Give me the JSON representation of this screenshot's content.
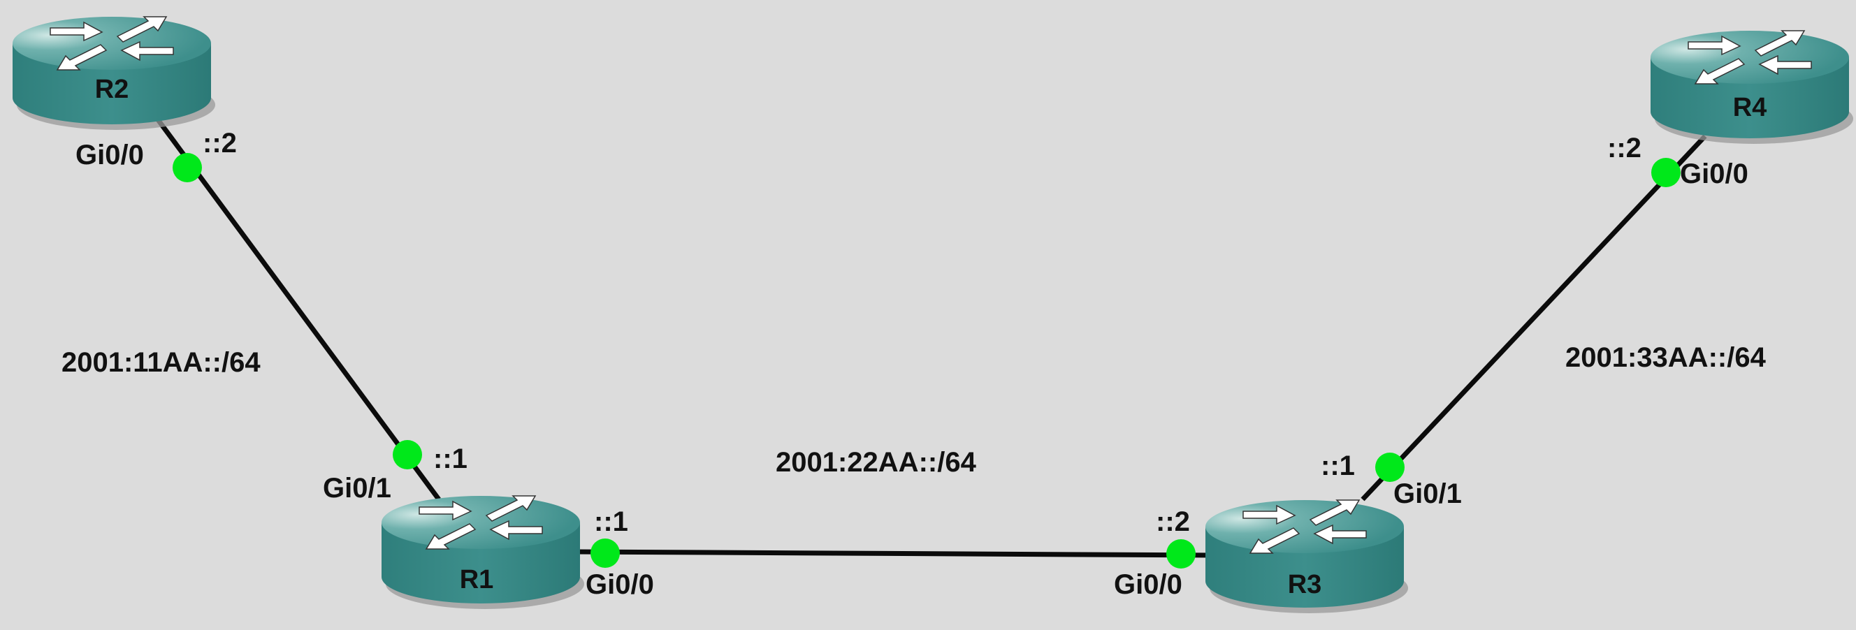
{
  "colors": {
    "background": "#dcdcdc",
    "router_top": "#4a9a98",
    "router_top_light": "#a9d3cf",
    "router_side": "#3a8a87",
    "router_shadow": "#9a9a9a",
    "link": "#0b0b0b",
    "port_dot": "#00e81a",
    "text": "#111111"
  },
  "routers": {
    "r1": {
      "name": "R1",
      "icon": "router-icon"
    },
    "r2": {
      "name": "R2",
      "icon": "router-icon"
    },
    "r3": {
      "name": "R3",
      "icon": "router-icon"
    },
    "r4": {
      "name": "R4",
      "icon": "router-icon"
    }
  },
  "networks": {
    "r1_r2": "2001:11AA::/64",
    "r1_r3": "2001:22AA::/64",
    "r3_r4": "2001:33AA::/64"
  },
  "interfaces": {
    "r2_gi00": {
      "name": "Gi0/0",
      "addr": "::2"
    },
    "r1_gi01": {
      "name": "Gi0/1",
      "addr": "::1"
    },
    "r1_gi00": {
      "name": "Gi0/0",
      "addr": "::1"
    },
    "r3_gi00": {
      "name": "Gi0/0",
      "addr": "::2"
    },
    "r3_gi01": {
      "name": "Gi0/1",
      "addr": "::1"
    },
    "r4_gi00": {
      "name": "Gi0/0",
      "addr": "::2"
    }
  }
}
